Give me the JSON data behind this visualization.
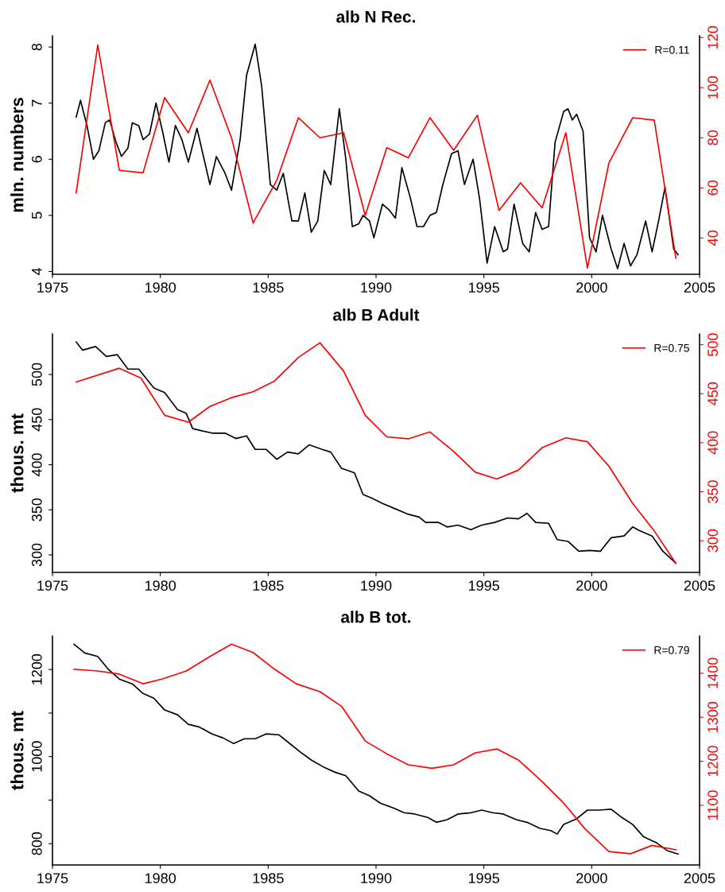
{
  "chart_data": [
    {
      "type": "line",
      "title": "alb N Rec.",
      "ylabel": "mln. numbers",
      "xlim": [
        1975,
        2005
      ],
      "xticks": [
        1975,
        1980,
        1985,
        1990,
        1995,
        2000,
        2005
      ],
      "ylim": [
        3.95,
        8.2
      ],
      "yticks": [
        4,
        5,
        6,
        7,
        8
      ],
      "y2lim": [
        25.5,
        120.7
      ],
      "y2ticks": [
        40,
        60,
        80,
        100,
        120
      ],
      "legend": "top right",
      "series": [
        {
          "color": "#000000",
          "x": [
            1976.1,
            1976.3,
            1976.6,
            1976.9,
            1977.15,
            1977.45,
            1977.65,
            1977.95,
            1978.2,
            1978.5,
            1978.7,
            1979.0,
            1979.2,
            1979.5,
            1979.8,
            1980.1,
            1980.4,
            1980.7,
            1981.0,
            1981.3,
            1981.7,
            1982.0,
            1982.3,
            1982.6,
            1983.0,
            1983.3,
            1983.7,
            1984.0,
            1984.4,
            1984.7,
            1985.1,
            1985.4,
            1985.7,
            1986.1,
            1986.4,
            1986.7,
            1987.0,
            1987.3,
            1987.6,
            1987.9,
            1988.3,
            1988.6,
            1988.9,
            1989.2,
            1989.4,
            1989.7,
            1989.9,
            1990.3,
            1990.6,
            1990.9,
            1991.2,
            1991.6,
            1991.9,
            1992.2,
            1992.5,
            1992.8,
            1993.1,
            1993.5,
            1993.8,
            1994.1,
            1994.5,
            1994.8,
            1995.15,
            1995.5,
            1995.9,
            1996.1,
            1996.4,
            1996.8,
            1997.1,
            1997.4,
            1997.7,
            1998.0,
            1998.3,
            1998.7,
            1998.9,
            1999.1,
            1999.3,
            1999.6,
            1999.9,
            2000.2,
            2000.5,
            2000.9,
            2001.2,
            2001.5,
            2001.8,
            2002.1,
            2002.5,
            2002.8,
            2003.1,
            2003.4,
            2003.8,
            2004.0
          ],
          "values": [
            6.75,
            7.05,
            6.6,
            6.0,
            6.15,
            6.65,
            6.7,
            6.3,
            6.05,
            6.2,
            6.65,
            6.6,
            6.35,
            6.45,
            7.0,
            6.5,
            5.95,
            6.6,
            6.35,
            5.95,
            6.55,
            6.05,
            5.55,
            6.05,
            5.75,
            5.45,
            6.35,
            7.5,
            8.05,
            7.3,
            5.55,
            5.45,
            5.75,
            4.9,
            4.9,
            5.4,
            4.7,
            4.9,
            5.8,
            5.55,
            6.9,
            6.0,
            4.8,
            4.85,
            5.0,
            4.9,
            4.6,
            5.2,
            5.1,
            4.95,
            5.85,
            5.3,
            4.8,
            4.8,
            5.0,
            5.05,
            5.55,
            6.1,
            6.15,
            5.55,
            6.0,
            5.3,
            4.15,
            4.8,
            4.35,
            4.4,
            5.2,
            4.5,
            4.35,
            5.05,
            4.75,
            4.8,
            6.3,
            6.85,
            6.9,
            6.7,
            6.8,
            6.5,
            4.6,
            4.35,
            5.0,
            4.4,
            4.05,
            4.5,
            4.1,
            4.3,
            4.9,
            4.35,
            4.9,
            5.5,
            4.4,
            4.3
          ]
        },
        {
          "name": "R=0.11",
          "color": "#ff0000",
          "axis": "y2",
          "x": [
            1976.1,
            1977.1,
            1978.1,
            1979.2,
            1980.2,
            1981.3,
            1982.3,
            1983.3,
            1984.3,
            1985.4,
            1986.4,
            1987.4,
            1988.5,
            1989.5,
            1990.5,
            1991.5,
            1992.5,
            1993.6,
            1994.7,
            1995.7,
            1996.7,
            1997.7,
            1998.8,
            1999.8,
            2000.8,
            2001.9,
            2002.9,
            2003.9
          ],
          "values": [
            58,
            117,
            67,
            66,
            96,
            82,
            103,
            80,
            46,
            63,
            88,
            80,
            82,
            49,
            76,
            72,
            88,
            75,
            89,
            51,
            62,
            52,
            82,
            28,
            70,
            88,
            87,
            32
          ]
        }
      ]
    },
    {
      "type": "line",
      "title": "alb B Adult",
      "ylabel": "thous. mt",
      "xlim": [
        1975,
        2005
      ],
      "xticks": [
        1975,
        1980,
        1985,
        1990,
        1995,
        2000,
        2005
      ],
      "ylim": [
        280.6,
        545
      ],
      "yticks": [
        300,
        350,
        400,
        450,
        500
      ],
      "y2lim": [
        267.7,
        511
      ],
      "y2ticks": [
        300,
        350,
        400,
        450,
        500
      ],
      "legend": "top right",
      "series": [
        {
          "color": "#000000",
          "x": [
            1976.1,
            1976.4,
            1977.0,
            1977.5,
            1978.0,
            1978.5,
            1979.0,
            1979.7,
            1980.2,
            1980.8,
            1981.2,
            1981.5,
            1982.4,
            1983.0,
            1983.5,
            1984.0,
            1984.4,
            1984.9,
            1985.4,
            1985.9,
            1986.4,
            1986.9,
            1987.5,
            1987.9,
            1988.4,
            1989.0,
            1989.4,
            1989.8,
            1990.3,
            1990.9,
            1991.5,
            1992.0,
            1992.3,
            1992.9,
            1993.3,
            1993.8,
            1994.4,
            1994.9,
            1995.5,
            1996.1,
            1996.6,
            1997.0,
            1997.4,
            1998.0,
            1998.4,
            1998.9,
            1999.4,
            1999.9,
            2000.4,
            2000.9,
            2001.5,
            2001.9,
            2002.2,
            2002.8,
            2003.3,
            2003.9
          ],
          "values": [
            536,
            527,
            531,
            520,
            522,
            506,
            506,
            485,
            480,
            461,
            457,
            440,
            435,
            435,
            429,
            432,
            417,
            417,
            406,
            414,
            412,
            422,
            417,
            414,
            396,
            391,
            367,
            363,
            357,
            351,
            345,
            342,
            336,
            336,
            331,
            333,
            328,
            333,
            336,
            341,
            340,
            346,
            336,
            335,
            317,
            315,
            304,
            305,
            304,
            319,
            321,
            331,
            327,
            321,
            304,
            291
          ]
        },
        {
          "name": "R=0.75",
          "color": "#ff0000",
          "axis": "y2",
          "x": [
            1976.1,
            1978.1,
            1979.1,
            1980.2,
            1981.3,
            1982.3,
            1983.3,
            1984.3,
            1985.3,
            1986.4,
            1987.4,
            1988.5,
            1989.5,
            1990.5,
            1991.5,
            1992.5,
            1993.6,
            1994.6,
            1995.6,
            1996.6,
            1997.7,
            1998.8,
            1999.8,
            2000.8,
            2001.9,
            2002.9,
            2003.9
          ],
          "values": [
            462,
            476,
            466,
            428,
            421,
            437,
            446,
            452,
            463,
            487,
            502,
            473,
            428,
            406,
            404,
            411,
            391,
            370,
            363,
            372,
            395,
            405,
            401,
            376,
            338,
            310,
            277
          ]
        }
      ]
    },
    {
      "type": "line",
      "title": "alb B tot.",
      "ylabel": "thous. mt",
      "xlim": [
        1975,
        2005
      ],
      "xticks": [
        1975,
        1980,
        1985,
        1990,
        1995,
        2000,
        2005
      ],
      "ylim": [
        751,
        1277
      ],
      "yticks": [
        800,
        {
          "value": 900,
          "label": null
        },
        1000,
        {
          "value": 1100,
          "label": null
        },
        1200
      ],
      "y2lim": [
        964.5,
        1484.5
      ],
      "y2ticks": [
        1100,
        1200,
        1300,
        1400
      ],
      "legend": "top right",
      "series": [
        {
          "color": "#000000",
          "x": [
            1976.0,
            1976.5,
            1977.1,
            1977.6,
            1978.1,
            1978.7,
            1979.2,
            1979.7,
            1980.2,
            1980.8,
            1981.3,
            1981.8,
            1982.4,
            1982.9,
            1983.4,
            1983.9,
            1984.4,
            1984.9,
            1985.5,
            1986.0,
            1986.5,
            1987.0,
            1987.6,
            1988.1,
            1988.6,
            1989.2,
            1989.7,
            1990.2,
            1990.8,
            1991.3,
            1991.8,
            1992.4,
            1992.8,
            1993.3,
            1993.8,
            1994.4,
            1994.9,
            1995.4,
            1995.9,
            1996.5,
            1997.0,
            1997.6,
            1998.1,
            1998.4,
            1998.7,
            1999.3,
            1999.8,
            2000.3,
            2000.9,
            2001.4,
            2001.9,
            2002.4,
            2003.0,
            2003.5,
            2004.0
          ],
          "values": [
            1258,
            1238,
            1230,
            1200,
            1178,
            1167,
            1145,
            1134,
            1107,
            1096,
            1074,
            1068,
            1052,
            1043,
            1030,
            1041,
            1041,
            1052,
            1050,
            1030,
            1010,
            992,
            975,
            964,
            956,
            921,
            910,
            893,
            882,
            871,
            868,
            860,
            849,
            855,
            868,
            871,
            877,
            871,
            868,
            855,
            849,
            835,
            830,
            822,
            844,
            857,
            877,
            877,
            879,
            860,
            844,
            816,
            802,
            784,
            776
          ]
        },
        {
          "name": "R=0.79",
          "color": "#ff0000",
          "axis": "y2",
          "x": [
            1976.0,
            1977.1,
            1978.1,
            1979.2,
            1980.1,
            1981.2,
            1982.3,
            1983.3,
            1984.3,
            1985.3,
            1986.3,
            1987.4,
            1988.4,
            1989.5,
            1990.5,
            1991.5,
            1992.6,
            1993.6,
            1994.6,
            1995.6,
            1996.6,
            1997.7,
            1998.7,
            1999.7,
            2000.8,
            2001.8,
            2002.8,
            2003.9
          ],
          "values": [
            1409,
            1405,
            1398,
            1376,
            1387,
            1405,
            1438,
            1466,
            1447,
            1409,
            1376,
            1358,
            1325,
            1246,
            1217,
            1192,
            1184,
            1192,
            1219,
            1228,
            1203,
            1154,
            1105,
            1046,
            995,
            990,
            1009,
            999
          ]
        }
      ]
    }
  ]
}
